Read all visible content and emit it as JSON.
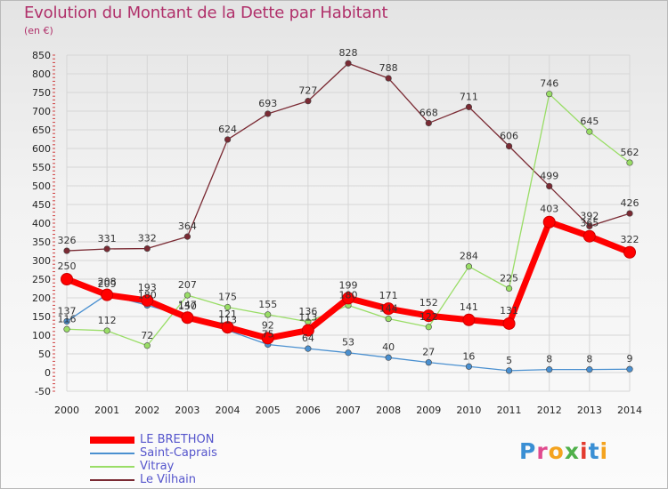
{
  "title": "Evolution du Montant de la Dette par Habitant",
  "subtitle": "(en €)",
  "logo": {
    "letters": [
      "P",
      "r",
      "o",
      "x",
      "i",
      "t",
      "i"
    ]
  },
  "chart_data": {
    "type": "line",
    "title": "Evolution du Montant de la Dette par Habitant",
    "subtitle": "(en €)",
    "xlabel": "",
    "ylabel": "",
    "ylim": [
      -50,
      850
    ],
    "yticks": [
      -50,
      0,
      50,
      100,
      150,
      200,
      250,
      300,
      350,
      400,
      450,
      500,
      550,
      600,
      650,
      700,
      750,
      800,
      850
    ],
    "x": [
      "2000",
      "2001",
      "2002",
      "2003",
      "2004",
      "2005",
      "2006",
      "2007",
      "2008",
      "2009",
      "2010",
      "2011",
      "2012",
      "2013",
      "2014"
    ],
    "grid": true,
    "legend_position": "bottom-left",
    "series": [
      {
        "name": "LE BRETHON",
        "color": "#ff0000",
        "values": [
          250,
          208,
          193,
          147,
          121,
          92,
          113,
          199,
          171,
          152,
          141,
          131,
          403,
          365,
          322
        ],
        "labels": [
          250,
          208,
          193,
          147,
          121,
          92,
          113,
          199,
          171,
          152,
          141,
          131,
          403,
          365,
          322
        ]
      },
      {
        "name": "Saint-Caprais",
        "color": "#4a90d0",
        "values": [
          137,
          209,
          180,
          150,
          113,
          75,
          64,
          53,
          40,
          27,
          16,
          5,
          8,
          8,
          9
        ],
        "labels": [
          137,
          209,
          180,
          150,
          113,
          75,
          64,
          53,
          40,
          27,
          16,
          5,
          8,
          8,
          9
        ]
      },
      {
        "name": "Vitray",
        "color": "#99dd66",
        "values": [
          116,
          112,
          72,
          207,
          175,
          155,
          136,
          180,
          144,
          122,
          284,
          225,
          746,
          645,
          562
        ],
        "labels": [
          116,
          112,
          72,
          207,
          175,
          155,
          136,
          180,
          144,
          122,
          284,
          225,
          746,
          645,
          562
        ]
      },
      {
        "name": "Le Vilhain",
        "color": "#7a2a33",
        "values": [
          326,
          331,
          332,
          364,
          624,
          693,
          727,
          828,
          788,
          668,
          711,
          606,
          499,
          392,
          426
        ],
        "labels": [
          326,
          331,
          332,
          364,
          624,
          693,
          727,
          828,
          788,
          668,
          711,
          606,
          499,
          392,
          426
        ]
      }
    ]
  }
}
